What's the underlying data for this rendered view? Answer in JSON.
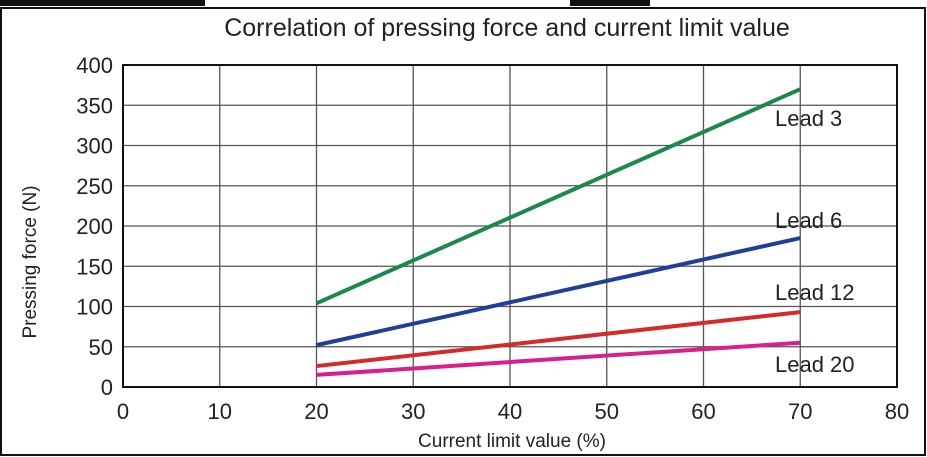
{
  "chart_data": {
    "type": "line",
    "title": "Correlation of pressing force and current limit value",
    "xlabel": "Current limit value (%)",
    "ylabel": "Pressing force (N)",
    "xlim": [
      0,
      80
    ],
    "ylim": [
      0,
      400
    ],
    "xticks": [
      "0",
      "10",
      "20",
      "30",
      "40",
      "50",
      "60",
      "70",
      "80"
    ],
    "yticks": [
      "0",
      "50",
      "100",
      "150",
      "200",
      "250",
      "300",
      "350",
      "400"
    ],
    "grid": true,
    "series": [
      {
        "name": "Lead 3",
        "color": "#1a8a4a",
        "x": [
          20,
          70
        ],
        "y": [
          104,
          370
        ]
      },
      {
        "name": "Lead 6",
        "color": "#1f3f9a",
        "x": [
          20,
          70
        ],
        "y": [
          52,
          185
        ]
      },
      {
        "name": "Lead 12",
        "color": "#d42a2a",
        "x": [
          20,
          70
        ],
        "y": [
          26,
          93
        ]
      },
      {
        "name": "Lead 20",
        "color": "#d81f8c",
        "x": [
          20,
          70
        ],
        "y": [
          15,
          55
        ]
      }
    ]
  }
}
